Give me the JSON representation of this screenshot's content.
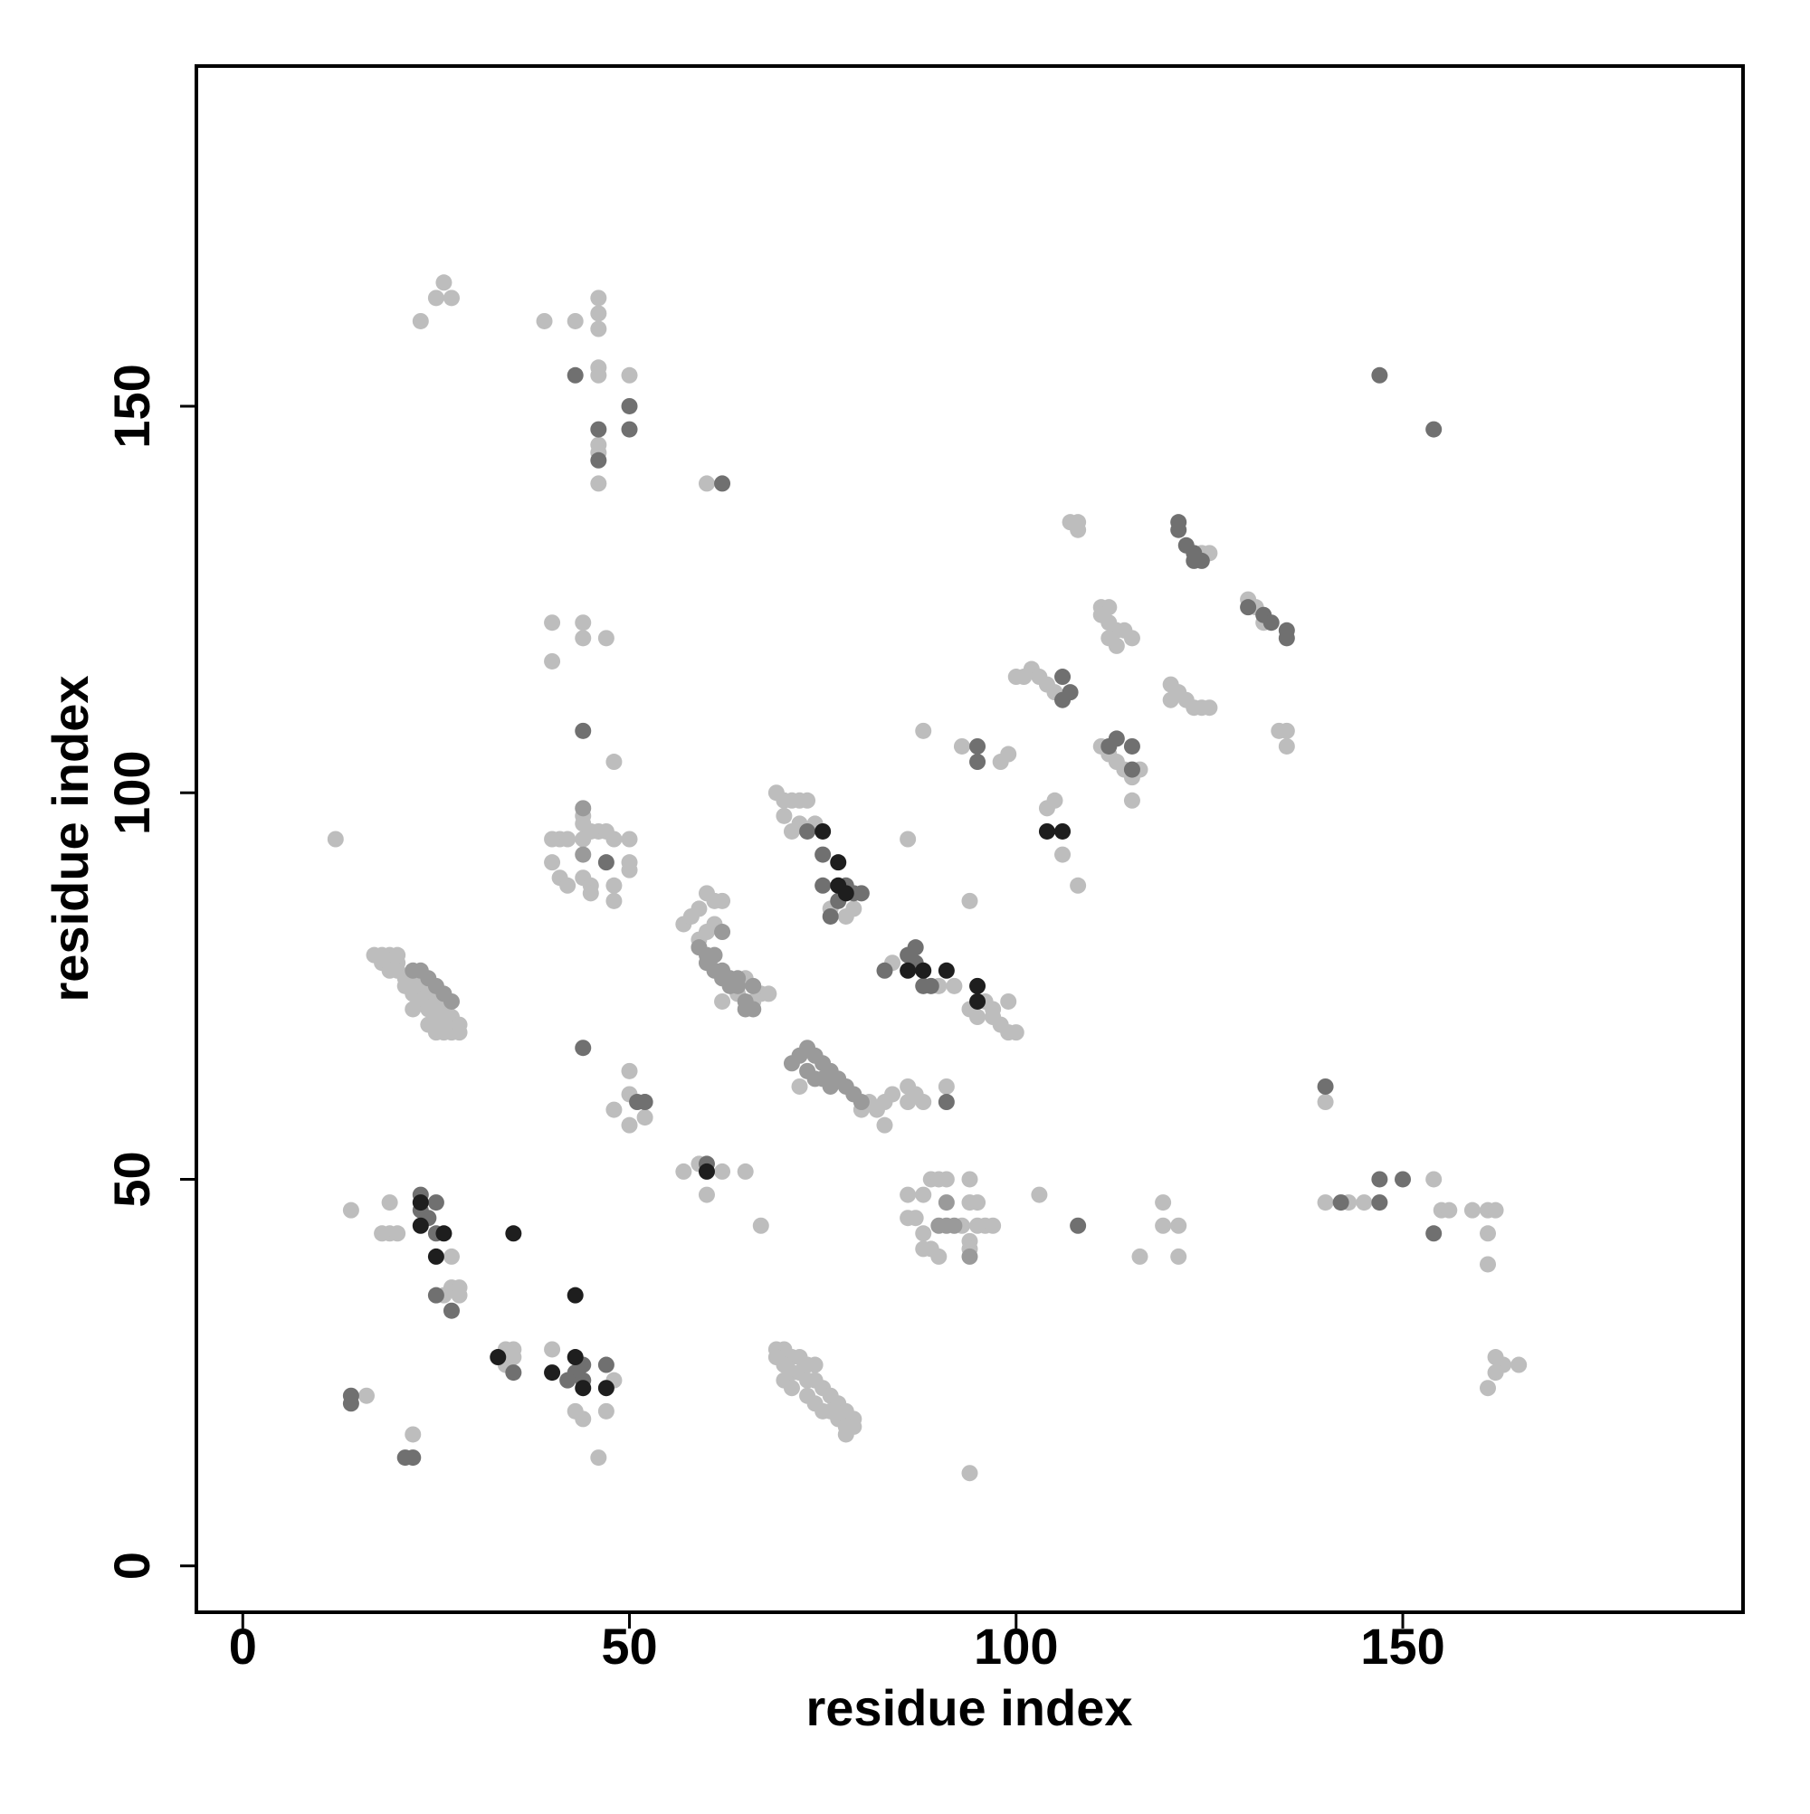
{
  "chart_data": {
    "type": "scatter",
    "xlabel": "residue index",
    "ylabel": "residue index",
    "xlim": [
      -6,
      194
    ],
    "ylim": [
      -6,
      194
    ],
    "xticks": [
      0,
      50,
      100,
      150
    ],
    "yticks": [
      0,
      50,
      100,
      150
    ],
    "grid": false,
    "series": [
      {
        "color": "#bdbdbd",
        "x": [
          12,
          26,
          25,
          27,
          23,
          39,
          43,
          46,
          46,
          46,
          46,
          46,
          50,
          46,
          46,
          46,
          60,
          40,
          40,
          44,
          44,
          47,
          48,
          40,
          41,
          42,
          44,
          45,
          46,
          47,
          48,
          50,
          40,
          41,
          42,
          44,
          45,
          45,
          48,
          48,
          50,
          50,
          44,
          44,
          17,
          18,
          19,
          20,
          20,
          18,
          19,
          20,
          21,
          21,
          22,
          23,
          22,
          23,
          24,
          25,
          24,
          25,
          26,
          27,
          26,
          27,
          28,
          28,
          22,
          24,
          25,
          26,
          57,
          58,
          59,
          60,
          61,
          62,
          59,
          60,
          61,
          62,
          64,
          65,
          66,
          67,
          68,
          69,
          70,
          71,
          72,
          73,
          70,
          71,
          72,
          74,
          76,
          78,
          79,
          72,
          80,
          81,
          82,
          83,
          84,
          83,
          86,
          86,
          87,
          88,
          91,
          84,
          90,
          92,
          94,
          95,
          96,
          97,
          98,
          99,
          100,
          99,
          97,
          100,
          102,
          103,
          104,
          105,
          101,
          111,
          112,
          111,
          112,
          113,
          114,
          115,
          112,
          113,
          111,
          112,
          113,
          114,
          115,
          116,
          120,
          120,
          121,
          122,
          123,
          124,
          125,
          130,
          131,
          132,
          134,
          135,
          135,
          108,
          107,
          108,
          125,
          124,
          104,
          105,
          106,
          108,
          115,
          98,
          99,
          93,
          88,
          86,
          94,
          14,
          19,
          19,
          20,
          18,
          27,
          27,
          28,
          28,
          26,
          34,
          35,
          35,
          34,
          40,
          44,
          43,
          48,
          47,
          46,
          22,
          16,
          50,
          50,
          52,
          48,
          52,
          50,
          57,
          59,
          60,
          62,
          65,
          67,
          69,
          70,
          71,
          72,
          73,
          74,
          69,
          70,
          71,
          72,
          73,
          74,
          75,
          76,
          77,
          78,
          79,
          79,
          78,
          73,
          74,
          75,
          76,
          77,
          78,
          70,
          71,
          86,
          88,
          86,
          87,
          88,
          88,
          89,
          90,
          89,
          90,
          91,
          94,
          94,
          95,
          93,
          96,
          97,
          94,
          94,
          95,
          94,
          103,
          116,
          119,
          119,
          121,
          121,
          140,
          143,
          145,
          154,
          155,
          156,
          159,
          161,
          162,
          161,
          161,
          162,
          163,
          165,
          162,
          161,
          140
        ],
        "values": [
          94,
          166,
          164,
          164,
          161,
          161,
          161,
          164,
          162,
          160,
          155,
          154,
          154,
          145,
          144,
          140,
          140,
          122,
          117,
          122,
          120,
          120,
          104,
          94,
          94,
          94,
          94,
          95,
          95,
          95,
          94,
          94,
          91,
          89,
          88,
          89,
          88,
          87,
          88,
          86,
          91,
          90,
          97,
          96,
          79,
          79,
          79,
          79,
          78,
          78,
          77,
          77,
          76,
          75,
          76,
          75,
          74,
          73,
          74,
          73,
          72,
          71,
          72,
          71,
          70,
          69,
          70,
          69,
          72,
          70,
          69,
          69,
          83,
          84,
          85,
          87,
          86,
          86,
          81,
          82,
          83,
          73,
          74,
          76,
          73,
          74,
          74,
          100,
          99,
          99,
          99,
          99,
          97,
          95,
          96,
          96,
          85,
          84,
          85,
          62,
          59,
          60,
          59,
          60,
          61,
          57,
          62,
          60,
          61,
          60,
          62,
          78,
          75,
          75,
          72,
          71,
          73,
          72,
          70,
          69,
          69,
          73,
          71,
          115,
          116,
          115,
          114,
          113,
          115,
          124,
          124,
          123,
          122,
          121,
          121,
          120,
          120,
          119,
          106,
          105,
          104,
          103,
          102,
          103,
          114,
          112,
          113,
          112,
          111,
          111,
          111,
          125,
          124,
          122,
          108,
          108,
          106,
          135,
          135,
          134,
          131,
          131,
          98,
          99,
          92,
          88,
          99,
          104,
          105,
          106,
          108,
          94,
          86,
          46,
          47,
          43,
          43,
          43,
          40,
          36,
          36,
          35,
          35,
          28,
          28,
          27,
          26,
          28,
          19,
          20,
          24,
          20,
          14,
          17,
          22,
          64,
          61,
          60,
          59,
          58,
          57,
          51,
          52,
          48,
          51,
          51,
          44,
          28,
          28,
          27,
          27,
          26,
          26,
          27,
          26,
          25,
          25,
          24,
          24,
          23,
          22,
          21,
          20,
          19,
          18,
          17,
          22,
          21,
          20,
          20,
          19,
          18,
          24,
          23,
          48,
          48,
          45,
          45,
          43,
          41,
          41,
          40,
          50,
          50,
          50,
          50,
          47,
          47,
          44,
          44,
          44,
          42,
          41,
          44,
          12,
          48,
          40,
          47,
          44,
          44,
          40,
          47,
          47,
          47,
          50,
          46,
          46,
          46,
          46,
          46,
          43,
          39,
          27,
          26,
          26,
          25,
          23,
          60
        ]
      },
      {
        "color": "#9a9a9a",
        "x": [
          22,
          23,
          24,
          25,
          26,
          27,
          59,
          60,
          61,
          62,
          63,
          64,
          60,
          61,
          62,
          63,
          65,
          66,
          65,
          66,
          62,
          64,
          71,
          72,
          73,
          74,
          75,
          76,
          77,
          75,
          76,
          78,
          79,
          80,
          73,
          74,
          44,
          44,
          91,
          90,
          91,
          92,
          94
        ],
        "values": [
          77,
          77,
          76,
          75,
          74,
          73,
          80,
          79,
          79,
          77,
          76,
          75,
          78,
          77,
          76,
          75,
          73,
          72,
          72,
          75,
          82,
          76,
          65,
          66,
          67,
          66,
          65,
          64,
          63,
          63,
          62,
          62,
          61,
          60,
          64,
          63,
          98,
          92,
          47,
          44,
          44,
          44,
          40
        ]
      },
      {
        "color": "#707070",
        "x": [
          43,
          50,
          50,
          46,
          46,
          62,
          44,
          47,
          73,
          75,
          75,
          77,
          79,
          80,
          78,
          76,
          83,
          86,
          87,
          87,
          88,
          89,
          91,
          106,
          107,
          106,
          112,
          113,
          115,
          115,
          121,
          121,
          122,
          123,
          123,
          124,
          130,
          132,
          133,
          135,
          135,
          95,
          95,
          14,
          14,
          21,
          22,
          23,
          23,
          25,
          25,
          24,
          25,
          27,
          35,
          43,
          44,
          47,
          44,
          42,
          51,
          52,
          60,
          44,
          108,
          140,
          142,
          147,
          147,
          150,
          154,
          147,
          154
        ],
        "values": [
          154,
          150,
          147,
          147,
          143,
          140,
          108,
          91,
          95,
          92,
          88,
          86,
          87,
          87,
          88,
          84,
          77,
          79,
          80,
          78,
          75,
          75,
          60,
          115,
          113,
          112,
          106,
          107,
          106,
          103,
          135,
          134,
          132,
          131,
          130,
          130,
          124,
          123,
          122,
          121,
          120,
          106,
          104,
          22,
          21,
          14,
          14,
          48,
          46,
          47,
          43,
          45,
          35,
          33,
          25,
          25,
          26,
          26,
          24,
          24,
          60,
          60,
          52,
          67,
          44,
          62,
          47,
          50,
          47,
          50,
          43,
          154,
          147
        ]
      },
      {
        "color": "#1e1e1e",
        "x": [
          75,
          77,
          77,
          78,
          86,
          88,
          91,
          95,
          95,
          104,
          106,
          23,
          23,
          26,
          25,
          33,
          35,
          40,
          43,
          43,
          44,
          47,
          60
        ],
        "values": [
          95,
          91,
          88,
          87,
          77,
          77,
          77,
          75,
          73,
          95,
          95,
          47,
          44,
          43,
          40,
          27,
          43,
          25,
          35,
          27,
          23,
          23,
          51
        ]
      }
    ]
  }
}
